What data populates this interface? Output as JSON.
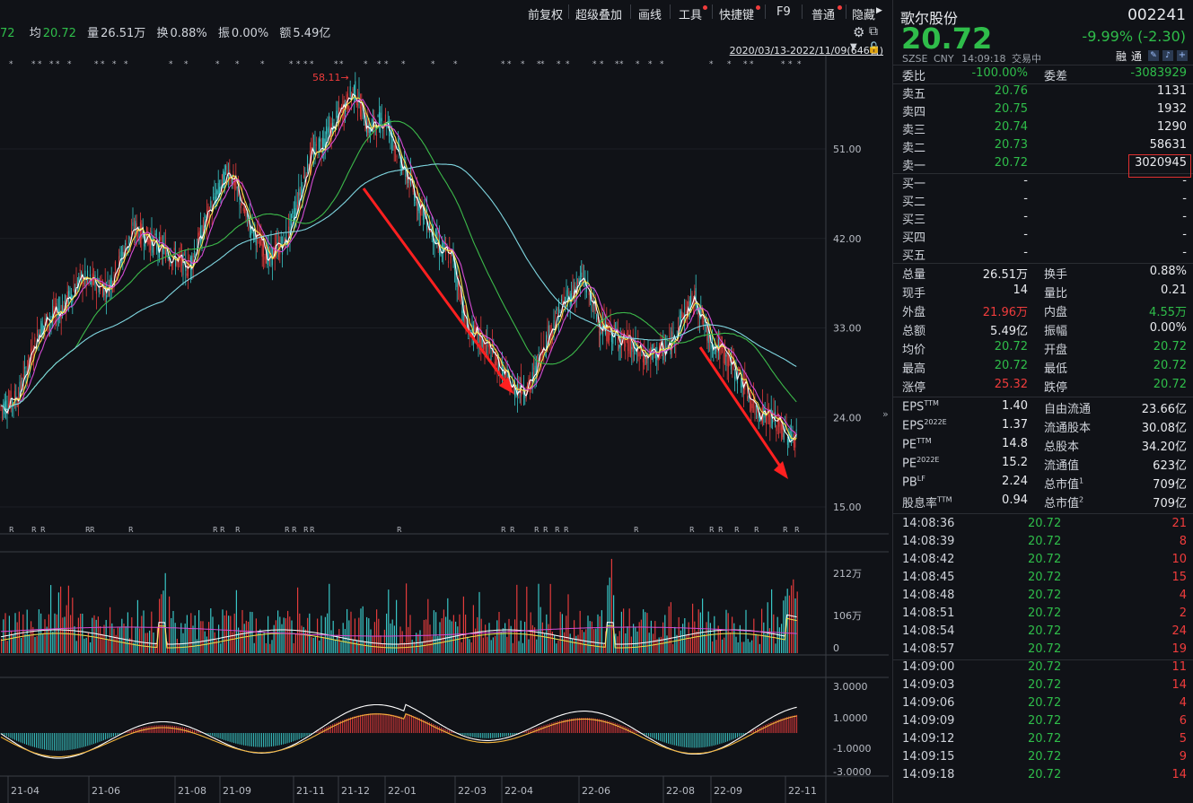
{
  "toolbar": {
    "buttons": [
      "前复权",
      "超级叠加",
      "画线",
      "工具",
      "快捷键",
      "F9",
      "普通",
      "隐藏"
    ]
  },
  "info": {
    "prefix": "72",
    "avg_label": "均",
    "avg_value": "20.72",
    "vol_label": "量",
    "vol_value": "26.51万",
    "turn_label": "换",
    "turn_value": "0.88%",
    "amp_label": "振",
    "amp_value": "0.00%",
    "amt_label": "额",
    "amt_value": "5.49亿"
  },
  "range_label": "2020/03/13-2022/11/09(646日)",
  "chart_data": {
    "type": "candlestick",
    "y_ticks": [
      "51.00",
      "42.00",
      "33.00",
      "24.00",
      "15.00"
    ],
    "vol_ticks": [
      "212万",
      "106万",
      "0"
    ],
    "macd_ticks": [
      "3.0000",
      "1.0000",
      "-1.0000",
      "-3.0000"
    ],
    "x_labels": [
      "21-04",
      "21-06",
      "21-08",
      "21-09",
      "21-11",
      "21-12",
      "22-01",
      "22-03",
      "22-04",
      "22-06",
      "22-08",
      "22-09",
      "22-11"
    ],
    "peak_label": "58.11",
    "price_ylim": [
      15,
      60
    ]
  },
  "stock": {
    "name": "歌尔股份",
    "code": "002241",
    "price": "20.72",
    "change": "-9.99% (-2.30)",
    "exchange": "SZSE",
    "currency": "CNY",
    "time": "14:09:18",
    "status": "交易中",
    "tags": [
      "融",
      "通"
    ]
  },
  "order_book": {
    "ratio_label": "委比",
    "ratio_value": "-100.00%",
    "diff_label": "委差",
    "diff_value": "-3083929",
    "asks": [
      {
        "label": "卖五",
        "price": "20.76",
        "vol": "1131"
      },
      {
        "label": "卖四",
        "price": "20.75",
        "vol": "1932"
      },
      {
        "label": "卖三",
        "price": "20.74",
        "vol": "1290"
      },
      {
        "label": "卖二",
        "price": "20.73",
        "vol": "58631"
      },
      {
        "label": "卖一",
        "price": "20.72",
        "vol": "3020945"
      }
    ],
    "bids": [
      {
        "label": "买一",
        "price": "-",
        "vol": "-"
      },
      {
        "label": "买二",
        "price": "-",
        "vol": "-"
      },
      {
        "label": "买三",
        "price": "-",
        "vol": "-"
      },
      {
        "label": "买四",
        "price": "-",
        "vol": "-"
      },
      {
        "label": "买五",
        "price": "-",
        "vol": "-"
      }
    ]
  },
  "stats": [
    {
      "l1": "总量",
      "v1": "26.51万",
      "c1": "white",
      "l2": "换手",
      "v2": "0.88%",
      "c2": "white"
    },
    {
      "l1": "现手",
      "v1": "14",
      "c1": "white",
      "l2": "量比",
      "v2": "0.21",
      "c2": "white"
    },
    {
      "l1": "外盘",
      "v1": "21.96万",
      "c1": "red",
      "l2": "内盘",
      "v2": "4.55万",
      "c2": "green"
    },
    {
      "l1": "总额",
      "v1": "5.49亿",
      "c1": "white",
      "l2": "振幅",
      "v2": "0.00%",
      "c2": "white"
    },
    {
      "l1": "均价",
      "v1": "20.72",
      "c1": "green",
      "l2": "开盘",
      "v2": "20.72",
      "c2": "green"
    },
    {
      "l1": "最高",
      "v1": "20.72",
      "c1": "green",
      "l2": "最低",
      "v2": "20.72",
      "c2": "green"
    },
    {
      "l1": "涨停",
      "v1": "25.32",
      "c1": "red",
      "l2": "跌停",
      "v2": "20.72",
      "c2": "green"
    }
  ],
  "fundamentals": [
    {
      "l1": "EPS",
      "s1": "TTM",
      "v1": "1.40",
      "l2": "自由流通",
      "s2": "",
      "v2": "23.66亿"
    },
    {
      "l1": "EPS",
      "s1": "2022E",
      "v1": "1.37",
      "l2": "流通股本",
      "s2": "",
      "v2": "30.08亿"
    },
    {
      "l1": "PE",
      "s1": "TTM",
      "v1": "14.8",
      "l2": "总股本",
      "s2": "",
      "v2": "34.20亿"
    },
    {
      "l1": "PE",
      "s1": "2022E",
      "v1": "15.2",
      "l2": "流通值",
      "s2": "",
      "v2": "623亿"
    },
    {
      "l1": "PB",
      "s1": "LF",
      "v1": "2.24",
      "l2": "总市值",
      "s2": "1",
      "v2": "709亿"
    },
    {
      "l1": "股息率",
      "s1": "TTM",
      "v1": "0.94",
      "l2": "总市值",
      "s2": "2",
      "v2": "709亿"
    }
  ],
  "ticks": [
    {
      "time": "14:08:36",
      "price": "20.72",
      "vol": "21"
    },
    {
      "time": "14:08:39",
      "price": "20.72",
      "vol": "8"
    },
    {
      "time": "14:08:42",
      "price": "20.72",
      "vol": "10"
    },
    {
      "time": "14:08:45",
      "price": "20.72",
      "vol": "15"
    },
    {
      "time": "14:08:48",
      "price": "20.72",
      "vol": "4"
    },
    {
      "time": "14:08:51",
      "price": "20.72",
      "vol": "2"
    },
    {
      "time": "14:08:54",
      "price": "20.72",
      "vol": "24"
    },
    {
      "time": "14:08:57",
      "price": "20.72",
      "vol": "19"
    },
    {
      "time": "14:09:00",
      "price": "20.72",
      "vol": "11"
    },
    {
      "time": "14:09:03",
      "price": "20.72",
      "vol": "14"
    },
    {
      "time": "14:09:06",
      "price": "20.72",
      "vol": "4"
    },
    {
      "time": "14:09:09",
      "price": "20.72",
      "vol": "6"
    },
    {
      "time": "14:09:12",
      "price": "20.72",
      "vol": "5"
    },
    {
      "time": "14:09:15",
      "price": "20.72",
      "vol": "9"
    },
    {
      "time": "14:09:18",
      "price": "20.72",
      "vol": "14"
    }
  ]
}
